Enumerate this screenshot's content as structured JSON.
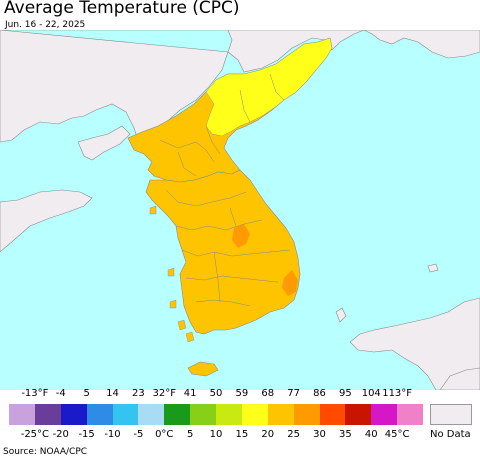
{
  "title": "Average Temperature (CPC)",
  "subtitle": "Jun. 16 - 22, 2025",
  "source": "Source: NOAA/CPC",
  "legend": {
    "fahrenheit_labels": [
      "-13°F",
      "-4",
      "5",
      "14",
      "23",
      "32°F",
      "41",
      "50",
      "59",
      "68",
      "77",
      "86",
      "95",
      "104",
      "113°F"
    ],
    "celsius_labels": [
      "-25°C",
      "-20",
      "-15",
      "-10",
      "-5",
      "0°C",
      "5",
      "10",
      "15",
      "20",
      "25",
      "30",
      "35",
      "40",
      "45°C"
    ],
    "colors": [
      "#c8a2dd",
      "#6a3d9a",
      "#1a1ac8",
      "#2e8be6",
      "#33c4f0",
      "#a8dcf4",
      "#1a9a1a",
      "#88d018",
      "#c8ea10",
      "#ffff1a",
      "#ffc400",
      "#ff9a00",
      "#ff4a00",
      "#c81400",
      "#d418c8",
      "#f080c8"
    ],
    "no_data_label": "No Data",
    "no_data_color": "#f0ecef"
  },
  "map_colors": {
    "sea": "#b8ffff",
    "no_data_land": "#f0ecef",
    "temp_15_20": "#ffff1a",
    "temp_20_25": "#ffc400",
    "temp_25_30": "#ff9a00"
  }
}
